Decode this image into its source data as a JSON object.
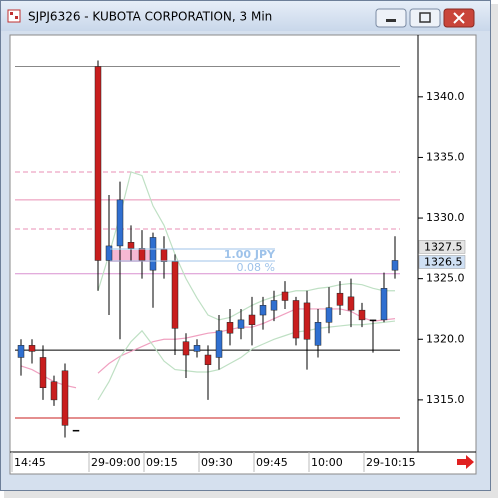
{
  "chart_data": {
    "type": "candlestick",
    "title": "SJPJ6326 - KUBOTA CORPORATION, 3 Min",
    "categories": [
      "14:45",
      null,
      null,
      null,
      null,
      null,
      null,
      "29-09:00",
      null,
      null,
      null,
      null,
      "09:15",
      null,
      null,
      null,
      null,
      "09:30",
      null,
      null,
      null,
      null,
      "09:45",
      null,
      null,
      null,
      null,
      "10:00",
      null,
      null,
      null,
      null,
      "29-10:15",
      null,
      null
    ],
    "open": [
      1318.5,
      1319.5,
      1318.5,
      1316.5,
      1317.4,
      1312.5,
      null,
      1342.5,
      1326.5,
      1327.7,
      1328,
      1327.5,
      1325.7,
      1327.4,
      1326.4,
      1319.8,
      1319,
      1318.7,
      1318.5,
      1321.4,
      1320.9,
      1322,
      1322,
      1322.4,
      1323.9,
      1323.2,
      1323,
      1319.5,
      1321.4,
      1323.8,
      1323.5,
      1322.4,
      1321.6,
      1321.6,
      1325.7
    ],
    "high": [
      1320,
      1320,
      1319.5,
      1317,
      1318,
      1312.5,
      null,
      1343,
      1331.9,
      1333,
      1329.4,
      1329,
      1328.8,
      1328.5,
      1327,
      1320.5,
      1320,
      1319.5,
      1322,
      1322.5,
      1322.5,
      1323.5,
      1323.5,
      1324,
      1324.8,
      1323.5,
      1324,
      1322.5,
      1324.3,
      1324.8,
      1325,
      1323,
      1321.6,
      1325.5,
      1328.5
    ],
    "low": [
      1317,
      1318,
      1315,
      1314.5,
      1311.9,
      1312.5,
      null,
      1324,
      1322,
      1320,
      1326.5,
      1325,
      1322.6,
      1325,
      1318.7,
      1316.8,
      1318.5,
      1315,
      1317.5,
      1319.5,
      1320,
      1319.5,
      1320.8,
      1321.5,
      1322.5,
      1319.5,
      1317.5,
      1318.5,
      1320.5,
      1322,
      1321,
      1321,
      1318.9,
      1321.4,
      1325
    ],
    "close": [
      1319.5,
      1319,
      1316,
      1315,
      1312.9,
      1312.5,
      null,
      1326.5,
      1327.7,
      1331.5,
      1327.5,
      1326.5,
      1328.4,
      1326.4,
      1320.9,
      1318.7,
      1319.5,
      1317.9,
      1320.7,
      1320.5,
      1321.6,
      1321.2,
      1322.8,
      1323.2,
      1323.2,
      1320.1,
      1320,
      1321.4,
      1322.6,
      1322.8,
      1322.4,
      1321.6,
      1321.6,
      1324.2,
      1326.5
    ],
    "up_color": "#2f6fd0",
    "down_color": "#c81e1e",
    "overlays": [
      {
        "color": "#f0a0c0",
        "values": [
          1317.8,
          1317.5,
          1317,
          1316.5,
          1316.2,
          1316,
          null,
          1317.2,
          1318,
          1318.6,
          1319,
          1319.4,
          1319.8,
          1320,
          1320,
          1320.1,
          1320.3,
          1320.5,
          1320.6,
          1320.8,
          1321,
          1321,
          1321.3,
          1321.7,
          1322.1,
          1322.5,
          1322.5,
          1322.5,
          1322.5,
          1322.5,
          1322.3,
          1321.8,
          1321.5,
          1321.6,
          1321.7
        ]
      },
      {
        "color": "#bfe0c4",
        "values": [
          null,
          null,
          null,
          null,
          null,
          null,
          null,
          1324,
          1327,
          1330.2,
          1333.8,
          1333.5,
          1331,
          1329.4,
          1327,
          1325,
          1323.4,
          1322,
          1321.6,
          1321.8,
          1322.3,
          1322.8,
          1323.2,
          1323.5,
          1323.8,
          1324,
          1324,
          1324.2,
          1324.3,
          1324.5,
          1324.6,
          1324.5,
          1324.2,
          1324,
          1324
        ]
      },
      {
        "color": "#bfe0c4",
        "values": [
          null,
          null,
          null,
          null,
          null,
          null,
          null,
          1315,
          1316.5,
          1318.5,
          1319.8,
          1320.7,
          1319.5,
          1318.2,
          1317.5,
          1317.4,
          1317.3,
          1317.3,
          1317.5,
          1318,
          1318.5,
          1319.2,
          1319.6,
          1320,
          1320.3,
          1320.6,
          1320.7,
          1320.9,
          1321,
          1321.1,
          1321.2,
          1321.2,
          1321.3,
          1321.4,
          1321.5
        ]
      }
    ],
    "levels": [
      {
        "value": 1342.5,
        "color": "#888888",
        "dash": false
      },
      {
        "value": 1333.8,
        "color": "#e98fb5",
        "dash": true
      },
      {
        "value": 1331.5,
        "color": "#e98fb5",
        "dash": false
      },
      {
        "value": 1329.1,
        "color": "#e98fb5",
        "dash": true
      },
      {
        "value": 1325.4,
        "color": "#d990d0",
        "dash": false
      },
      {
        "value": 1319.1,
        "color": "#000000",
        "dash": false
      },
      {
        "value": 1313.5,
        "color": "#c81e1e",
        "dash": false
      }
    ],
    "annotations": [
      "1.00  JPY",
      "0.08 %"
    ],
    "price_tags": [
      1327.5,
      1326.5
    ],
    "ylim": [
      1310.7,
      1345.1
    ],
    "yticks": [
      {
        "value": 1315,
        "label": "1315.0"
      },
      {
        "value": 1320,
        "label": "1320.0"
      },
      {
        "value": 1325,
        "label": "1325.0"
      },
      {
        "value": 1330,
        "label": "1330.0"
      },
      {
        "value": 1335,
        "label": "1335.0"
      },
      {
        "value": 1340,
        "label": "1340.0"
      }
    ],
    "grid": false
  }
}
